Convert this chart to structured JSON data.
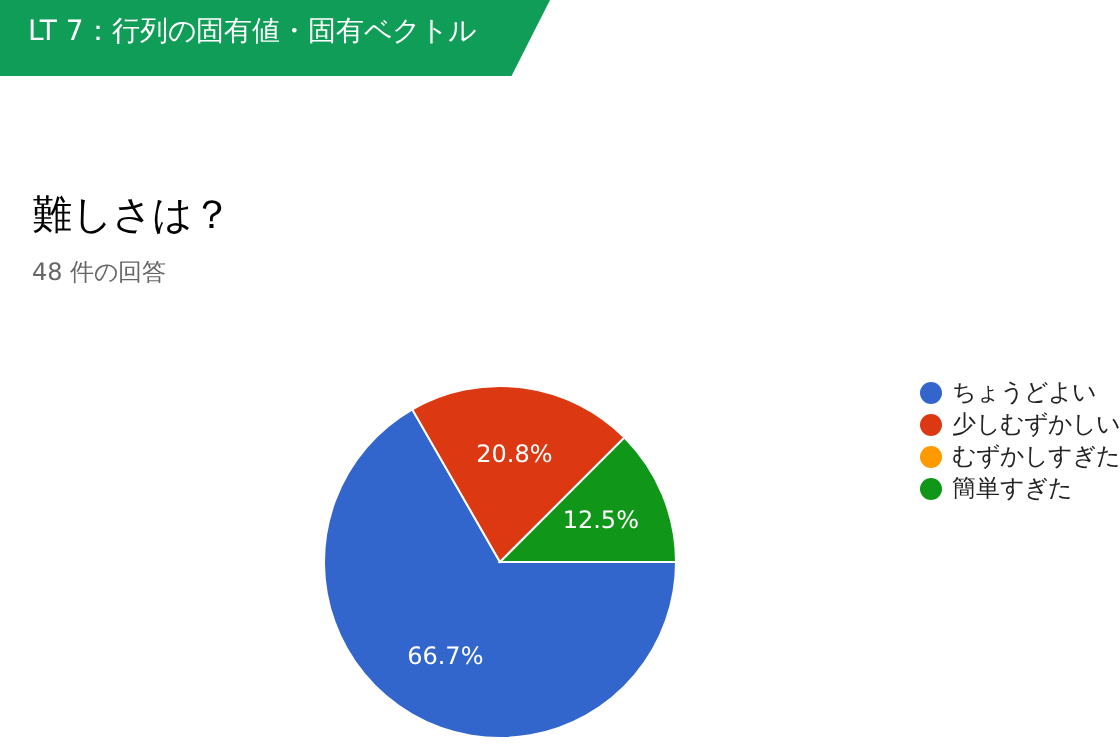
{
  "chart_data": {
    "type": "pie",
    "title": "LT 7：行列の固有値・固有ベクトル",
    "subtitle": "難しさは？",
    "annotations": [
      "48 件の回答"
    ],
    "categories": [
      "ちょうどよい",
      "少しむずかしい",
      "むずかしすぎた",
      "簡単すぎた"
    ],
    "values": [
      66.7,
      20.8,
      0,
      12.5
    ],
    "colors": [
      "#3366cc",
      "#dc3912",
      "#ff9900",
      "#109618"
    ],
    "value_labels": [
      "66.7%",
      "20.8%",
      null,
      "12.5%"
    ],
    "legend": "right"
  }
}
